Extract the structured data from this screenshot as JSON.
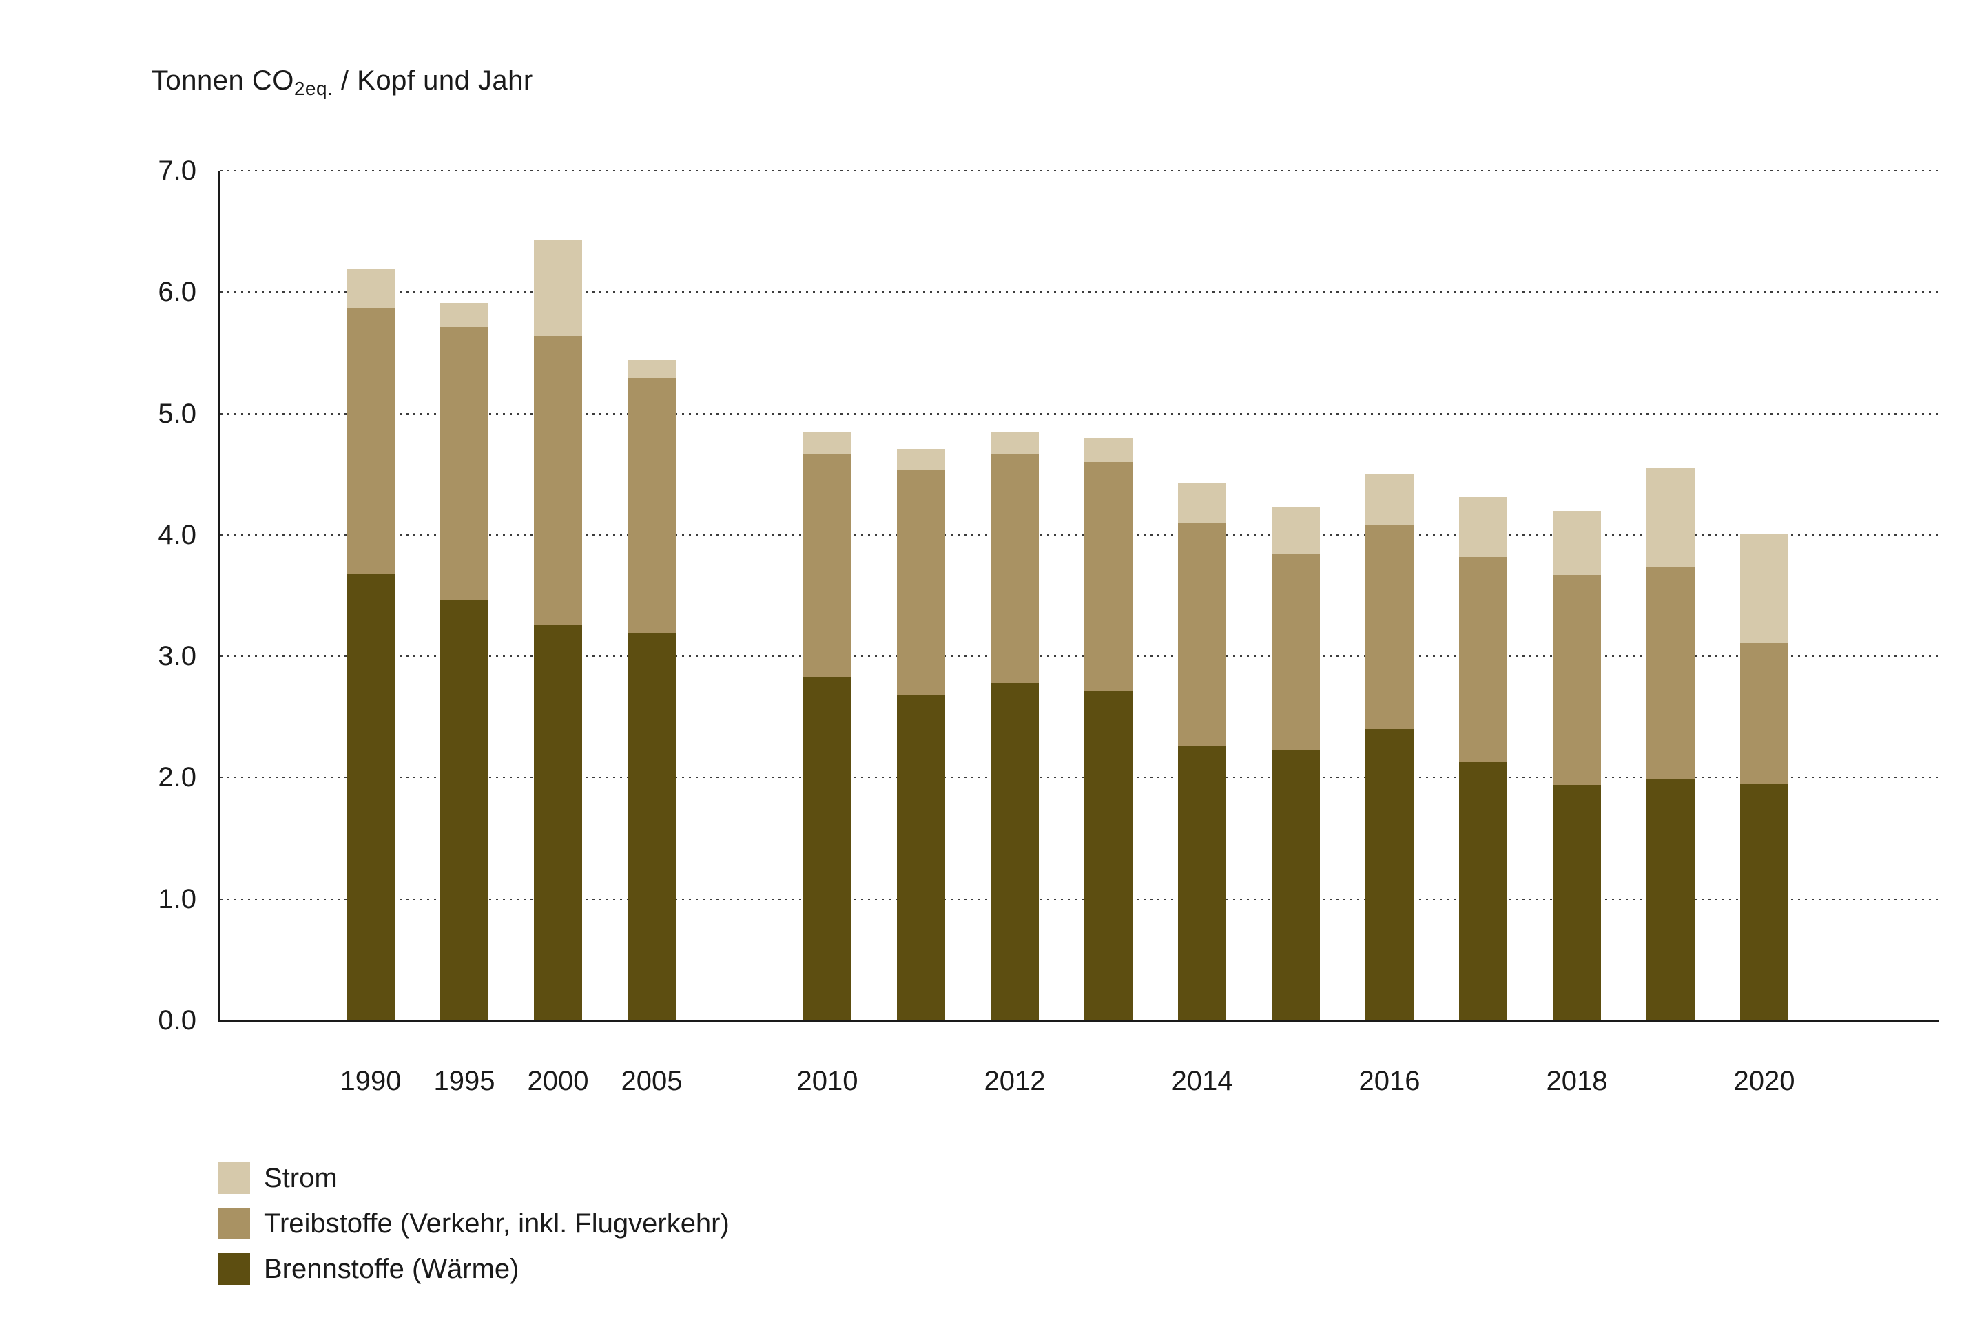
{
  "title": {
    "prefix": "Tonnen CO",
    "sub": "2eq.",
    "suffix": " / Kopf und Jahr"
  },
  "chart_data": {
    "type": "bar",
    "stacked": true,
    "title": "Tonnen CO2eq. / Kopf und Jahr",
    "categories": [
      1990,
      1995,
      2000,
      2005,
      2010,
      2011,
      2012,
      2013,
      2014,
      2015,
      2016,
      2017,
      2018,
      2019,
      2020
    ],
    "x_tick_labels": [
      "1990",
      "1995",
      "2000",
      "2005",
      "2010",
      "2012",
      "2014",
      "2016",
      "2018",
      "2020"
    ],
    "series": [
      {
        "name": "Brennstoffe (Wärme)",
        "color": "#5d4e11",
        "values": [
          3.68,
          3.46,
          3.26,
          3.19,
          2.83,
          2.68,
          2.78,
          2.72,
          2.26,
          2.23,
          2.4,
          2.13,
          1.94,
          1.99,
          1.95
        ]
      },
      {
        "name": "Treibstoffe (Verkehr, inkl. Flugverkehr)",
        "color": "#a99263",
        "values": [
          2.19,
          2.25,
          2.38,
          2.1,
          1.84,
          1.86,
          1.89,
          1.88,
          1.84,
          1.61,
          1.68,
          1.69,
          1.73,
          1.74,
          1.16
        ]
      },
      {
        "name": "Strom",
        "color": "#d6c9ab",
        "values": [
          0.32,
          0.2,
          0.79,
          0.15,
          0.18,
          0.17,
          0.18,
          0.2,
          0.33,
          0.39,
          0.42,
          0.49,
          0.53,
          0.82,
          0.9
        ]
      }
    ],
    "ylim": [
      0,
      7
    ],
    "y_ticks": [
      {
        "value": 7,
        "label": "7.0"
      },
      {
        "value": 6,
        "label": "6.0"
      },
      {
        "value": 5,
        "label": "5.0"
      },
      {
        "value": 4,
        "label": "4.0"
      },
      {
        "value": 3,
        "label": "3.0"
      },
      {
        "value": 2,
        "label": "2.0"
      },
      {
        "value": 1,
        "label": "1.0"
      },
      {
        "value": 0,
        "label": "0.0"
      }
    ],
    "grid": "dotted-horizontal",
    "legend_position": "bottom-left"
  },
  "legend": {
    "items": [
      {
        "label": "Strom",
        "color": "#d6c9ab"
      },
      {
        "label": "Treibstoffe (Verkehr, inkl. Flugverkehr)",
        "color": "#a99263"
      },
      {
        "label": "Brennstoffe (Wärme)",
        "color": "#5d4e11"
      }
    ]
  }
}
